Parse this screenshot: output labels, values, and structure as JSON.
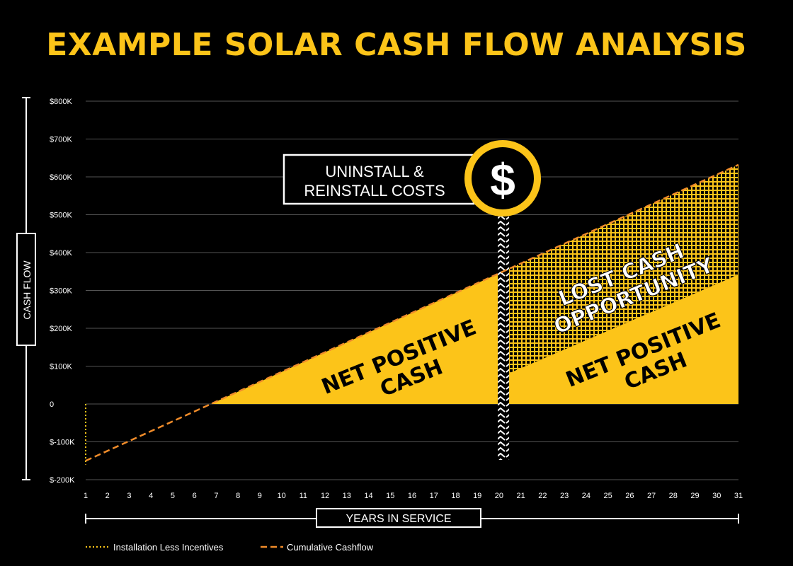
{
  "chart_data": {
    "type": "area",
    "title": "EXAMPLE SOLAR CASH FLOW ANALYSIS",
    "xlabel": "YEARS IN SERVICE",
    "ylabel": "CASH FLOW",
    "x": [
      1,
      2,
      3,
      4,
      5,
      6,
      7,
      8,
      9,
      10,
      11,
      12,
      13,
      14,
      15,
      16,
      17,
      18,
      19,
      20,
      21,
      22,
      23,
      24,
      25,
      26,
      27,
      28,
      29,
      30,
      31
    ],
    "xlim": [
      1,
      31
    ],
    "ylim": [
      -200,
      800
    ],
    "y_ticks": [
      -200,
      -100,
      0,
      100,
      200,
      300,
      400,
      500,
      600,
      700,
      800
    ],
    "y_tick_labels": [
      "$-200K",
      "$-100K",
      "0",
      "$100K",
      "$200K",
      "$300K",
      "$400K",
      "$500K",
      "$600K",
      "$700K",
      "$800K"
    ],
    "grid": true,
    "legend_position": "bottom-left",
    "series": [
      {
        "name": "Installation Less Incentives",
        "style": "dotted",
        "color": "#fcc419",
        "x": [
          1,
          1
        ],
        "y": [
          0,
          -160
        ]
      },
      {
        "name": "Cumulative Cashflow",
        "style": "dashed",
        "color": "#f08c2a",
        "x": [
          1,
          31
        ],
        "y": [
          -150,
          632
        ]
      }
    ],
    "event": {
      "x": 20.2,
      "label_line1": "UNINSTALL &",
      "label_line2": "REINSTALL COSTS",
      "symbol": "$"
    },
    "reduced_cashflow_after_event": {
      "x": [
        20.2,
        31
      ],
      "y": [
        75,
        342
      ]
    },
    "annotations": {
      "net_positive_1": [
        "NET POSITIVE",
        "CASH"
      ],
      "net_positive_2": [
        "NET POSITIVE",
        "CASH"
      ],
      "lost_cash": [
        "LOST CASH",
        "OPPORTUNITY"
      ]
    },
    "colors": {
      "accent": "#fcc419",
      "cumulative": "#f08c2a",
      "grid": "#555555",
      "background": "#000000"
    }
  }
}
